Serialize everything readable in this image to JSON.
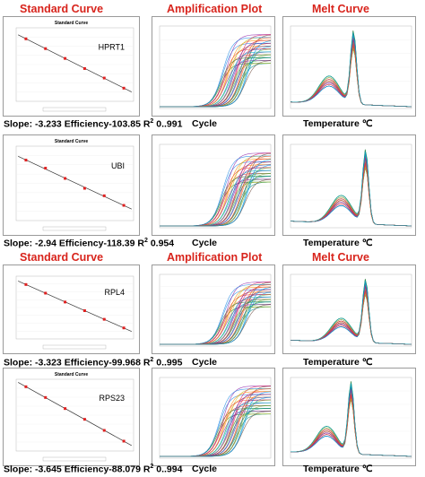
{
  "headers": {
    "standard_curve": "Standard Curve",
    "amplification_plot": "Amplification Plot",
    "melt_curve": "Melt Curve"
  },
  "colors": {
    "header_red": "#d8241c",
    "fit_line": "#333333",
    "std_points": "#e02020",
    "series": [
      "#2e7d32",
      "#1e88e5",
      "#e53935",
      "#8e24aa",
      "#fb8c00",
      "#00acc1",
      "#c0ca33",
      "#5e35b1",
      "#43a047",
      "#d81b60",
      "#3949ab",
      "#00897b",
      "#f4511e",
      "#7cb342",
      "#6d4c41",
      "#039be5"
    ]
  },
  "rows": [
    {
      "gene": "HPRT1",
      "std_title": "Standard Curve",
      "slope_text": "Slope: -3.233 Efficiency-103.85 R",
      "r2_text": " 0..991",
      "cycle_label": "Cycle",
      "temp_label": "Temperature  ℃",
      "chart_data": {
        "type": "scatter",
        "title": "Standard Curve",
        "slope": -3.233,
        "efficiency": 103.85,
        "r2": 0.991,
        "x": [
          1,
          2,
          3,
          4,
          5,
          6
        ],
        "y": [
          32.4,
          29.2,
          26.0,
          22.7,
          19.6,
          16.3
        ]
      }
    },
    {
      "gene": "UBI",
      "std_title": "Standard Curve",
      "slope_text": "Slope: -2.94 Efficiency-118.39 R",
      "r2_text": " 0.954",
      "cycle_label": "Cycle",
      "temp_label": "Temperature  ℃",
      "chart_data": {
        "type": "scatter",
        "title": "Standard Curve",
        "slope": -2.94,
        "efficiency": 118.39,
        "r2": 0.954,
        "x": [
          1,
          2,
          3,
          4,
          5,
          6
        ],
        "y": [
          31.5,
          28.9,
          25.6,
          22.4,
          20.0,
          16.9
        ]
      }
    },
    {
      "gene": "RPL4",
      "std_title": "Standard Curve",
      "slope_text": "Slope: -3.323 Efficiency-99.968 R",
      "r2_text": " 0..995",
      "cycle_label": "Cycle",
      "temp_label": "Temperature  ℃",
      "chart_data": {
        "type": "scatter",
        "title": "",
        "slope": -3.323,
        "efficiency": 99.968,
        "r2": 0.995,
        "x": [
          1,
          2,
          3,
          4,
          5,
          6
        ],
        "y": [
          32.8,
          29.5,
          26.1,
          22.8,
          19.5,
          16.2
        ]
      }
    },
    {
      "gene": "RPS23",
      "std_title": "Standard Curve",
      "slope_text": "Slope: -3.645 Efficiency-88.079 R",
      "r2_text": " 0..994",
      "cycle_label": "Cycle",
      "temp_label": "Temperature  ℃",
      "chart_data": {
        "type": "scatter",
        "title": "Standard Curve",
        "slope": -3.645,
        "efficiency": 88.079,
        "r2": 0.994,
        "x": [
          1,
          2,
          3,
          4,
          5,
          6
        ],
        "y": [
          33.5,
          29.9,
          26.2,
          22.6,
          18.9,
          15.3
        ]
      }
    }
  ]
}
